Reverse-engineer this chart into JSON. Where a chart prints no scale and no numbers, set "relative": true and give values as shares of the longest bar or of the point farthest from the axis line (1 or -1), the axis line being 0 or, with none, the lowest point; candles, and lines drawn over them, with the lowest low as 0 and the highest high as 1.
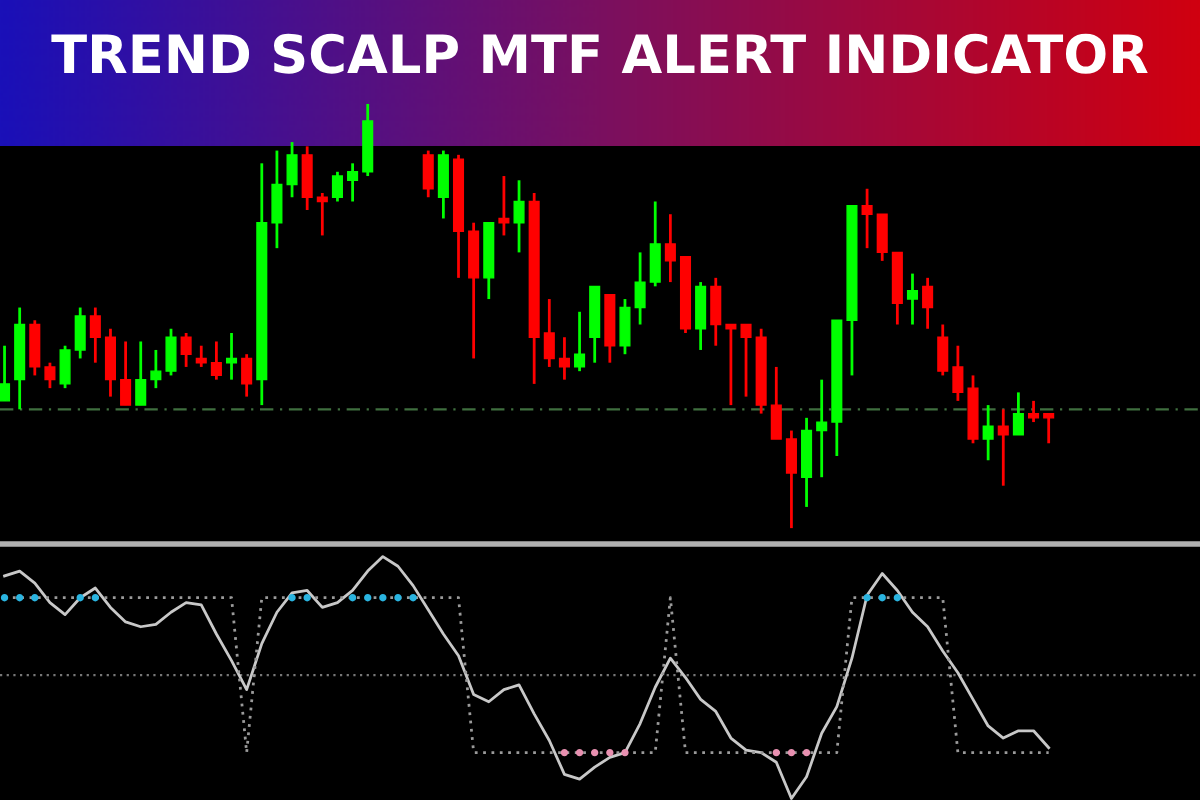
{
  "chart_data": [
    {
      "type": "candlestick",
      "title": "TREND SCALP MTF ALERT INDICATOR",
      "relative": true,
      "categories": [
        null,
        null,
        null,
        null,
        null,
        null,
        null,
        null,
        null,
        null,
        null,
        null,
        null,
        null,
        null,
        null,
        null,
        null,
        null,
        null,
        null,
        null,
        null,
        null,
        null,
        null,
        null,
        null,
        null,
        null,
        null,
        null,
        null,
        null,
        null,
        null,
        null,
        null,
        null,
        null,
        null,
        null,
        null,
        null,
        null,
        null,
        null,
        null,
        null,
        null,
        null,
        null,
        null,
        null,
        null,
        null,
        null,
        null,
        null,
        null,
        null,
        null,
        null,
        null,
        null,
        null,
        null,
        null,
        null,
        null
      ],
      "ohlc": [
        [
          0.3,
          0.43,
          0.3,
          0.34
        ],
        [
          0.35,
          0.52,
          0.28,
          0.48
        ],
        [
          0.48,
          0.49,
          0.36,
          0.38
        ],
        [
          0.38,
          0.39,
          0.33,
          0.35
        ],
        [
          0.34,
          0.43,
          0.33,
          0.42
        ],
        [
          0.42,
          0.52,
          0.4,
          0.5
        ],
        [
          0.5,
          0.52,
          0.39,
          0.45
        ],
        [
          0.45,
          0.47,
          0.31,
          0.35
        ],
        [
          0.35,
          0.44,
          0.29,
          0.29
        ],
        [
          0.29,
          0.44,
          0.29,
          0.35
        ],
        [
          0.35,
          0.42,
          0.33,
          0.37
        ],
        [
          0.37,
          0.47,
          0.36,
          0.45
        ],
        [
          0.45,
          0.46,
          0.38,
          0.41
        ],
        [
          0.4,
          0.43,
          0.38,
          0.39
        ],
        [
          0.39,
          0.44,
          0.35,
          0.36
        ],
        [
          0.39,
          0.46,
          0.35,
          0.4
        ],
        [
          0.4,
          0.41,
          0.31,
          0.34
        ],
        [
          0.35,
          0.86,
          0.29,
          0.72
        ],
        [
          0.72,
          0.89,
          0.66,
          0.81
        ],
        [
          0.81,
          0.91,
          0.78,
          0.88
        ],
        [
          0.88,
          0.9,
          0.75,
          0.78
        ],
        [
          0.78,
          0.79,
          0.69,
          0.77
        ],
        [
          0.78,
          0.84,
          0.77,
          0.83
        ],
        [
          0.82,
          0.86,
          0.77,
          0.84
        ],
        [
          0.84,
          1.0,
          0.83,
          0.96
        ],
        null,
        null,
        null,
        [
          0.88,
          0.89,
          0.78,
          0.8
        ],
        [
          0.78,
          0.89,
          0.73,
          0.88
        ],
        [
          0.87,
          0.88,
          0.59,
          0.7
        ],
        [
          0.7,
          0.72,
          0.4,
          0.59
        ],
        [
          0.59,
          0.72,
          0.54,
          0.72
        ],
        [
          0.73,
          0.83,
          0.69,
          0.72
        ],
        [
          0.72,
          0.82,
          0.65,
          0.77
        ],
        [
          0.77,
          0.79,
          0.34,
          0.45
        ],
        [
          0.46,
          0.54,
          0.38,
          0.4
        ],
        [
          0.4,
          0.45,
          0.35,
          0.38
        ],
        [
          0.38,
          0.51,
          0.37,
          0.41
        ],
        [
          0.45,
          0.57,
          0.39,
          0.57
        ],
        [
          0.55,
          0.55,
          0.39,
          0.43
        ],
        [
          0.43,
          0.54,
          0.41,
          0.52
        ],
        [
          0.52,
          0.65,
          0.48,
          0.58
        ],
        [
          0.58,
          0.77,
          0.57,
          0.67
        ],
        [
          0.67,
          0.74,
          0.58,
          0.63
        ],
        [
          0.64,
          0.64,
          0.46,
          0.47
        ],
        [
          0.47,
          0.58,
          0.42,
          0.57
        ],
        [
          0.57,
          0.59,
          0.43,
          0.48
        ],
        [
          0.48,
          0.48,
          0.29,
          0.47
        ],
        [
          0.48,
          0.48,
          0.31,
          0.45
        ],
        [
          0.45,
          0.47,
          0.27,
          0.29
        ],
        [
          0.29,
          0.38,
          0.21,
          0.21
        ],
        [
          0.21,
          0.23,
          0.0,
          0.13
        ],
        [
          0.12,
          0.26,
          0.05,
          0.23
        ],
        [
          0.23,
          0.35,
          0.12,
          0.25
        ],
        [
          0.25,
          0.49,
          0.17,
          0.49
        ],
        [
          0.49,
          0.76,
          0.36,
          0.76
        ],
        [
          0.76,
          0.8,
          0.66,
          0.74
        ],
        [
          0.74,
          0.74,
          0.63,
          0.65
        ],
        [
          0.65,
          0.65,
          0.48,
          0.53
        ],
        [
          0.54,
          0.6,
          0.48,
          0.56
        ],
        [
          0.57,
          0.59,
          0.47,
          0.52
        ],
        [
          0.45,
          0.48,
          0.36,
          0.37
        ],
        [
          0.38,
          0.43,
          0.3,
          0.32
        ],
        [
          0.33,
          0.36,
          0.2,
          0.21
        ],
        [
          0.21,
          0.29,
          0.16,
          0.24
        ],
        [
          0.24,
          0.28,
          0.1,
          0.22
        ],
        [
          0.22,
          0.32,
          0.22,
          0.27
        ],
        [
          0.27,
          0.3,
          0.25,
          0.26
        ],
        [
          0.27,
          0.27,
          0.2,
          0.26
        ]
      ],
      "colors": [
        "#00ff00",
        "#00ff00",
        "#ff0000",
        "#ff0000",
        "#00ff00",
        "#00ff00",
        "#ff0000",
        "#ff0000",
        "#ff0000",
        "#00ff00",
        "#00ff00",
        "#00ff00",
        "#ff0000",
        "#ff0000",
        "#ff0000",
        "#00ff00",
        "#ff0000",
        "#00ff00",
        "#00ff00",
        "#00ff00",
        "#ff0000",
        "#ff0000",
        "#00ff00",
        "#00ff00",
        "#00ff00",
        null,
        null,
        null,
        "#ff0000",
        "#00ff00",
        "#ff0000",
        "#ff0000",
        "#00ff00",
        "#ff0000",
        "#00ff00",
        "#ff0000",
        "#ff0000",
        "#ff0000",
        "#00ff00",
        "#00ff00",
        "#ff0000",
        "#00ff00",
        "#00ff00",
        "#00ff00",
        "#ff0000",
        "#ff0000",
        "#00ff00",
        "#ff0000",
        "#ff0000",
        "#ff0000",
        "#ff0000",
        "#ff0000",
        "#ff0000",
        "#00ff00",
        "#00ff00",
        "#00ff00",
        "#00ff00",
        "#ff0000",
        "#ff0000",
        "#ff0000",
        "#00ff00",
        "#ff0000",
        "#ff0000",
        "#ff0000",
        "#ff0000",
        "#00ff00",
        "#ff0000",
        "#00ff00",
        "#ff0000",
        "#ff0000"
      ],
      "ref_lines": [
        {
          "axis": "y",
          "value": 0.28,
          "color": "#3f6f3f",
          "line_style": "dashed"
        }
      ]
    },
    {
      "type": "line",
      "relative": true,
      "categories": [
        null,
        null,
        null,
        null,
        null,
        null,
        null,
        null,
        null,
        null,
        null,
        null,
        null,
        null,
        null,
        null,
        null,
        null,
        null,
        null,
        null,
        null,
        null,
        null,
        null,
        null,
        null,
        null,
        null,
        null,
        null,
        null,
        null,
        null,
        null,
        null,
        null,
        null,
        null,
        null,
        null,
        null,
        null,
        null,
        null,
        null,
        null,
        null,
        null,
        null,
        null,
        null,
        null,
        null,
        null,
        null,
        null,
        null,
        null,
        null,
        null,
        null,
        null,
        null,
        null,
        null,
        null,
        null,
        null,
        null
      ],
      "series": [
        {
          "color": "#c8c8c8",
          "values": [
            0.92,
            0.94,
            0.89,
            0.81,
            0.76,
            0.83,
            0.87,
            0.79,
            0.73,
            0.71,
            0.72,
            0.77,
            0.81,
            0.8,
            0.68,
            0.57,
            0.45,
            0.64,
            0.77,
            0.85,
            0.86,
            0.79,
            0.81,
            0.86,
            0.94,
            1.0,
            0.96,
            0.88,
            0.78,
            0.68,
            0.59,
            0.43,
            0.4,
            0.45,
            0.47,
            0.35,
            0.24,
            0.1,
            0.08,
            0.13,
            0.17,
            0.19,
            0.31,
            0.46,
            0.58,
            0.5,
            0.41,
            0.36,
            0.25,
            0.2,
            0.19,
            0.15,
            0.0,
            0.09,
            0.27,
            0.38,
            0.58,
            0.84,
            0.93,
            0.86,
            0.77,
            0.71,
            0.61,
            0.52,
            0.41,
            0.3,
            0.25,
            0.28,
            0.28,
            0.21
          ]
        },
        {
          "color": "#9a9a9a",
          "line_style": "dotted",
          "values": [
            0.83,
            0.83,
            0.83,
            0.83,
            0.83,
            0.83,
            0.83,
            0.83,
            0.83,
            0.83,
            0.83,
            0.83,
            0.83,
            0.83,
            0.83,
            0.83,
            0.19,
            0.83,
            0.83,
            0.83,
            0.83,
            0.83,
            0.83,
            0.83,
            0.83,
            0.83,
            0.83,
            0.83,
            0.83,
            0.83,
            0.83,
            0.19,
            0.19,
            0.19,
            0.19,
            0.19,
            0.19,
            0.19,
            0.19,
            0.19,
            0.19,
            0.19,
            0.19,
            0.19,
            0.83,
            0.19,
            0.19,
            0.19,
            0.19,
            0.19,
            0.19,
            0.19,
            0.19,
            0.19,
            0.19,
            0.19,
            0.83,
            0.83,
            0.83,
            0.83,
            0.83,
            0.83,
            0.83,
            0.19,
            0.19,
            0.19,
            0.19,
            0.19,
            0.19,
            0.19
          ]
        },
        {
          "type": "scatter",
          "color": "#2ab4e0",
          "values": [
            0.83,
            0.83,
            0.83,
            null,
            null,
            0.83,
            0.83,
            null,
            null,
            null,
            null,
            null,
            null,
            null,
            null,
            null,
            null,
            null,
            null,
            0.83,
            0.83,
            null,
            null,
            0.83,
            0.83,
            0.83,
            0.83,
            0.83,
            null,
            null,
            null,
            null,
            null,
            null,
            null,
            null,
            null,
            null,
            null,
            null,
            null,
            null,
            null,
            null,
            null,
            null,
            null,
            null,
            null,
            null,
            null,
            null,
            null,
            null,
            null,
            null,
            null,
            0.83,
            0.83,
            0.83,
            null,
            null,
            null,
            null,
            null,
            null,
            null,
            null,
            null,
            null
          ]
        },
        {
          "type": "scatter",
          "color": "#e890b0",
          "values": [
            null,
            null,
            null,
            null,
            null,
            null,
            null,
            null,
            null,
            null,
            null,
            null,
            null,
            null,
            null,
            null,
            null,
            null,
            null,
            null,
            null,
            null,
            null,
            null,
            null,
            null,
            null,
            null,
            null,
            null,
            null,
            null,
            null,
            null,
            null,
            null,
            null,
            0.19,
            0.19,
            0.19,
            0.19,
            0.19,
            null,
            null,
            null,
            null,
            null,
            null,
            null,
            null,
            null,
            0.19,
            0.19,
            0.19,
            null,
            null,
            null,
            null,
            null,
            null,
            null,
            null,
            null,
            null,
            null,
            null,
            null,
            null,
            null,
            null
          ]
        }
      ],
      "ref_lines": [
        {
          "axis": "y",
          "value": 0.51,
          "color": "#777777",
          "line_style": "dotted"
        }
      ]
    }
  ]
}
